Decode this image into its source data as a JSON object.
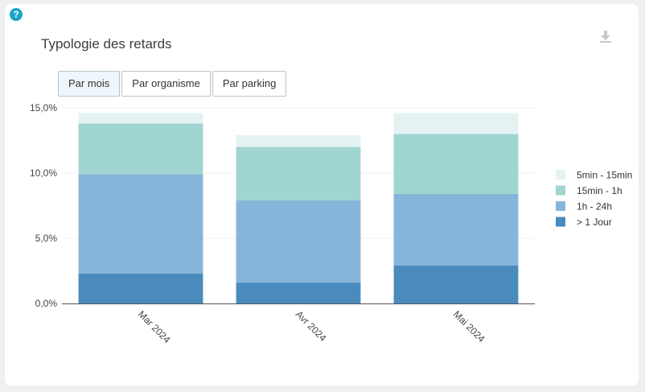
{
  "help": {
    "icon": "question-icon",
    "glyph": "?"
  },
  "title": "Typologie des retards",
  "download": {
    "icon": "download-icon"
  },
  "tabs": [
    {
      "label": "Par mois",
      "active": true
    },
    {
      "label": "Par organisme",
      "active": false
    },
    {
      "label": "Par parking",
      "active": false
    }
  ],
  "chart_data": {
    "type": "bar",
    "stacked": true,
    "categories": [
      "Mar 2024",
      "Avr 2024",
      "Mai 2024"
    ],
    "y_ticks": [
      "0,0%",
      "5,0%",
      "10,0%",
      "15,0%"
    ],
    "ylim": [
      0,
      15
    ],
    "grid": true,
    "legend_position": "right",
    "series": [
      {
        "name": "> 1 Jour",
        "color": "#4a8bbe",
        "values": [
          2.3,
          1.6,
          2.9
        ]
      },
      {
        "name": "1h - 24h",
        "color": "#87b5d9",
        "values": [
          7.6,
          6.3,
          5.5
        ]
      },
      {
        "name": "15min - 1h",
        "color": "#a0d5d2",
        "values": [
          3.9,
          4.1,
          4.6
        ]
      },
      {
        "name": "5min - 15min",
        "color": "#e4f2f2",
        "values": [
          0.8,
          0.9,
          1.6
        ]
      }
    ]
  }
}
